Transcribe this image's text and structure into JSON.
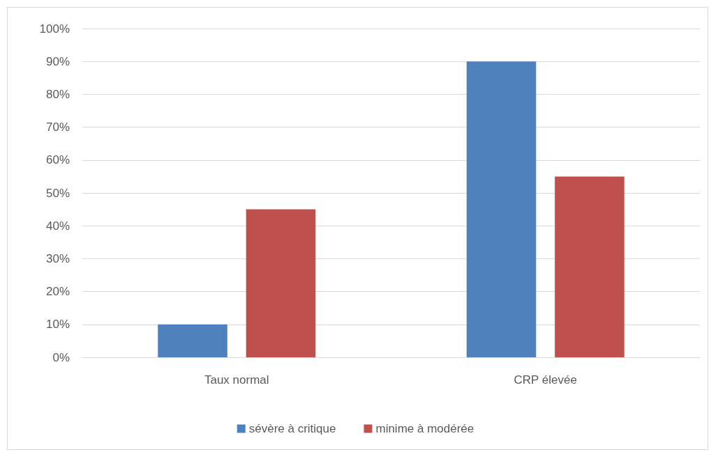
{
  "chart_data": {
    "type": "bar",
    "categories": [
      "Taux normal",
      "CRP élevée"
    ],
    "series": [
      {
        "name": "sévère à critique",
        "color": "#4f81bd",
        "values": [
          10,
          90
        ]
      },
      {
        "name": "minime à modérée",
        "color": "#c0504d",
        "values": [
          45,
          55
        ]
      }
    ],
    "ylim": [
      0,
      100
    ],
    "yticks": [
      {
        "value": 0,
        "label": "0%"
      },
      {
        "value": 10,
        "label": "10%"
      },
      {
        "value": 20,
        "label": "20%"
      },
      {
        "value": 30,
        "label": "30%"
      },
      {
        "value": 40,
        "label": "40%"
      },
      {
        "value": 50,
        "label": "50%"
      },
      {
        "value": 60,
        "label": "60%"
      },
      {
        "value": 70,
        "label": "70%"
      },
      {
        "value": 80,
        "label": "80%"
      },
      {
        "value": 90,
        "label": "90%"
      },
      {
        "value": 100,
        "label": "100%"
      }
    ],
    "grid": "y",
    "legend": "bottom"
  }
}
